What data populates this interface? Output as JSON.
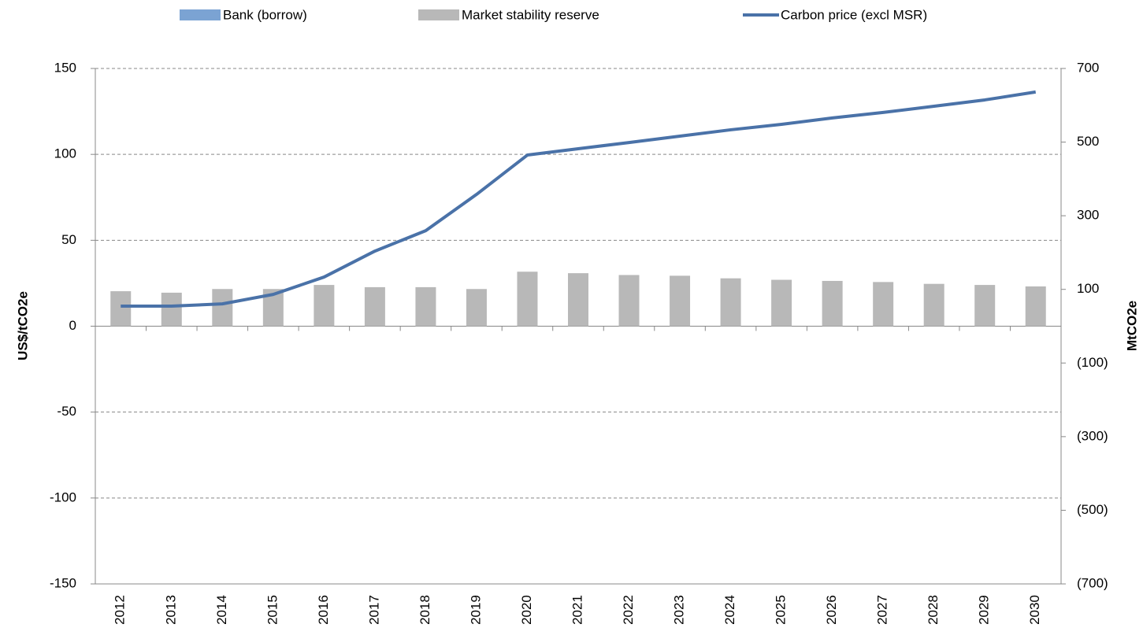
{
  "chart_data": {
    "type": "bar_line",
    "ylabel": "US$/tCO2e",
    "y2label": "MtCO2e",
    "categories": [
      "2012",
      "2013",
      "2014",
      "2015",
      "2016",
      "2017",
      "2018",
      "2019",
      "2020",
      "2021",
      "2022",
      "2023",
      "2024",
      "2025",
      "2026",
      "2027",
      "2028",
      "2029",
      "2030"
    ],
    "series": [
      {
        "name": "Bank (borrow)",
        "type": "bar",
        "axis": "y2",
        "color": "#7ba3d3",
        "values": [
          0,
          0,
          0,
          0,
          0,
          0,
          0,
          0,
          0,
          0,
          0,
          0,
          0,
          0,
          0,
          0,
          0,
          0,
          0
        ]
      },
      {
        "name": "Market stability reserve",
        "type": "bar",
        "axis": "y2",
        "color": "#b8b8b8",
        "values": [
          95,
          91,
          101,
          101,
          112,
          106,
          106,
          101,
          148,
          144,
          139,
          137,
          130,
          126,
          123,
          120,
          115,
          112,
          108
        ]
      },
      {
        "name": "Carbon price (excl MSR)",
        "type": "line",
        "axis": "y",
        "color": "#4a72a8",
        "values": [
          11.7,
          11.7,
          13,
          18.5,
          28.6,
          43.7,
          55.6,
          76.7,
          99.6,
          103.3,
          106.9,
          110.6,
          114.3,
          117.5,
          121.2,
          124.4,
          128,
          131.7,
          136.3
        ]
      }
    ],
    "ylim": [
      -150,
      150
    ],
    "yticks": [
      -150,
      -100,
      -50,
      0,
      50,
      100,
      150
    ],
    "y2lim": [
      -700,
      700
    ],
    "y2ticks": [
      {
        "value": -700,
        "label": "(700)"
      },
      {
        "value": -500,
        "label": "(500)"
      },
      {
        "value": -300,
        "label": "(300)"
      },
      {
        "value": -100,
        "label": "(100)"
      },
      100,
      300,
      500,
      700
    ],
    "grid": true
  }
}
